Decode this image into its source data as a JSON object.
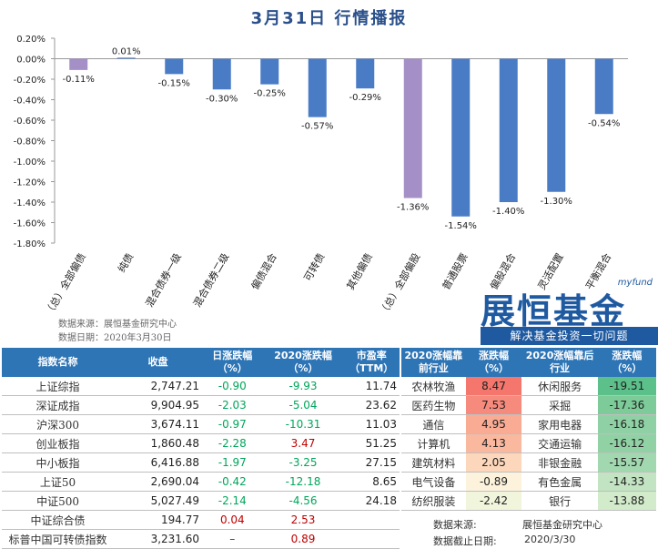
{
  "title": "3月31日  行情播报",
  "chart_data": {
    "type": "bar",
    "categories": [
      "（总）全部偏债",
      "纯债",
      "混合债券一级",
      "混合债券二级",
      "偏债混合",
      "可转债",
      "其他偏债",
      "（总）全部偏股",
      "普通股票",
      "偏股混合",
      "灵活配置",
      "平衡混合"
    ],
    "values": [
      -0.11,
      0.01,
      -0.15,
      -0.3,
      -0.25,
      -0.57,
      -0.29,
      -1.36,
      -1.54,
      -1.4,
      -1.3,
      -0.54
    ],
    "data_labels": [
      "-0.11%",
      "0.01%",
      "-0.15%",
      "-0.30%",
      "-0.25%",
      "-0.57%",
      "-0.29%",
      "-1.36%",
      "-1.54%",
      "-1.40%",
      "-1.30%",
      "-0.54%"
    ],
    "highlight_indices": [
      0,
      7
    ],
    "colors": {
      "bar": "#4a7cc6",
      "highlight": "#a48fc7"
    },
    "ylim": [
      -1.8,
      0.2
    ],
    "yticks": [
      "0.20%",
      "0.00%",
      "-0.20%",
      "-0.40%",
      "-0.60%",
      "-0.80%",
      "-1.00%",
      "-1.20%",
      "-1.40%",
      "-1.60%",
      "-1.80%"
    ],
    "ytick_values": [
      0.2,
      0.0,
      -0.2,
      -0.4,
      -0.6,
      -0.8,
      -1.0,
      -1.2,
      -1.4,
      -1.6,
      -1.8
    ],
    "grid": false,
    "xlabel": "",
    "ylabel": ""
  },
  "source": {
    "line1": "数据来源：展恒基金研究中心",
    "line2": "数据日期：2020年3月30日"
  },
  "logo": {
    "en": "myfund",
    "cn": "展恒基金",
    "slogan": "解决基金投资一切问题"
  },
  "index_table": {
    "headers": [
      "指数名称",
      "收盘",
      "日涨跌幅（%）",
      "2020涨跌幅（%）",
      "市盈率（TTM）"
    ],
    "rows": [
      {
        "name": "上证综指",
        "close": "2,747.21",
        "day": "-0.90",
        "ytd": "-9.93",
        "pe": "11.74",
        "day_color": "green",
        "ytd_color": "green"
      },
      {
        "name": "深证成指",
        "close": "9,904.95",
        "day": "-2.03",
        "ytd": "-5.04",
        "pe": "23.62",
        "day_color": "green",
        "ytd_color": "green"
      },
      {
        "name": "沪深300",
        "close": "3,674.11",
        "day": "-0.97",
        "ytd": "-10.31",
        "pe": "11.03",
        "day_color": "green",
        "ytd_color": "green"
      },
      {
        "name": "创业板指",
        "close": "1,860.48",
        "day": "-2.28",
        "ytd": "3.47",
        "pe": "51.25",
        "day_color": "green",
        "ytd_color": "red"
      },
      {
        "name": "中小板指",
        "close": "6,416.88",
        "day": "-1.97",
        "ytd": "-3.25",
        "pe": "27.15",
        "day_color": "green",
        "ytd_color": "green"
      },
      {
        "name": "上证50",
        "close": "2,690.04",
        "day": "-0.42",
        "ytd": "-12.18",
        "pe": "8.65",
        "day_color": "green",
        "ytd_color": "green"
      },
      {
        "name": "中证500",
        "close": "5,027.49",
        "day": "-2.14",
        "ytd": "-4.56",
        "pe": "24.18",
        "day_color": "green",
        "ytd_color": "green"
      },
      {
        "name": "中证综合债",
        "close": "194.77",
        "day": "0.04",
        "ytd": "2.53",
        "pe": "",
        "day_color": "red",
        "ytd_color": "red"
      },
      {
        "name": "标普中国可转债指数",
        "close": "3,231.60",
        "day": "–",
        "ytd": "0.89",
        "pe": "",
        "day_color": "red",
        "ytd_color": "red"
      }
    ]
  },
  "industry_table": {
    "headers": [
      "2020涨幅靠前行业",
      "涨跌幅（%）",
      "2020涨幅靠后行业",
      "涨跌幅（%）"
    ],
    "rows": [
      {
        "top": "农林牧渔",
        "top_val": "8.47",
        "top_bg": "#f4766c",
        "bottom": "休闲服务",
        "bottom_val": "-19.51",
        "bottom_bg": "#5bc08a"
      },
      {
        "top": "医药生物",
        "top_val": "7.53",
        "top_bg": "#f68a7c",
        "bottom": "采掘",
        "bottom_val": "-17.36",
        "bottom_bg": "#7ccb98"
      },
      {
        "top": "通信",
        "top_val": "4.95",
        "top_bg": "#f9ab94",
        "bottom": "家用电器",
        "bottom_val": "-16.18",
        "bottom_bg": "#8fd1a4"
      },
      {
        "top": "计算机",
        "top_val": "4.13",
        "top_bg": "#fab89e",
        "bottom": "交通运输",
        "bottom_val": "-16.12",
        "bottom_bg": "#91d2a5"
      },
      {
        "top": "建筑材料",
        "top_val": "2.05",
        "top_bg": "#fcd7bb",
        "bottom": "非银金融",
        "bottom_val": "-15.57",
        "bottom_bg": "#a2d8b0"
      },
      {
        "top": "电气设备",
        "top_val": "-0.89",
        "top_bg": "#fdf3dd",
        "bottom": "有色金属",
        "bottom_val": "-14.33",
        "bottom_bg": "#c2e4c2"
      },
      {
        "top": "纺织服装",
        "top_val": "-2.42",
        "top_bg": "#f1f5dc",
        "bottom": "银行",
        "bottom_val": "-13.88",
        "bottom_bg": "#d2ebcb"
      }
    ],
    "footer": {
      "src_label": "数据来源:",
      "src_value": "展恒基金研究中心",
      "date_label": "数据截止日期:",
      "date_value": "2020/3/30"
    }
  }
}
